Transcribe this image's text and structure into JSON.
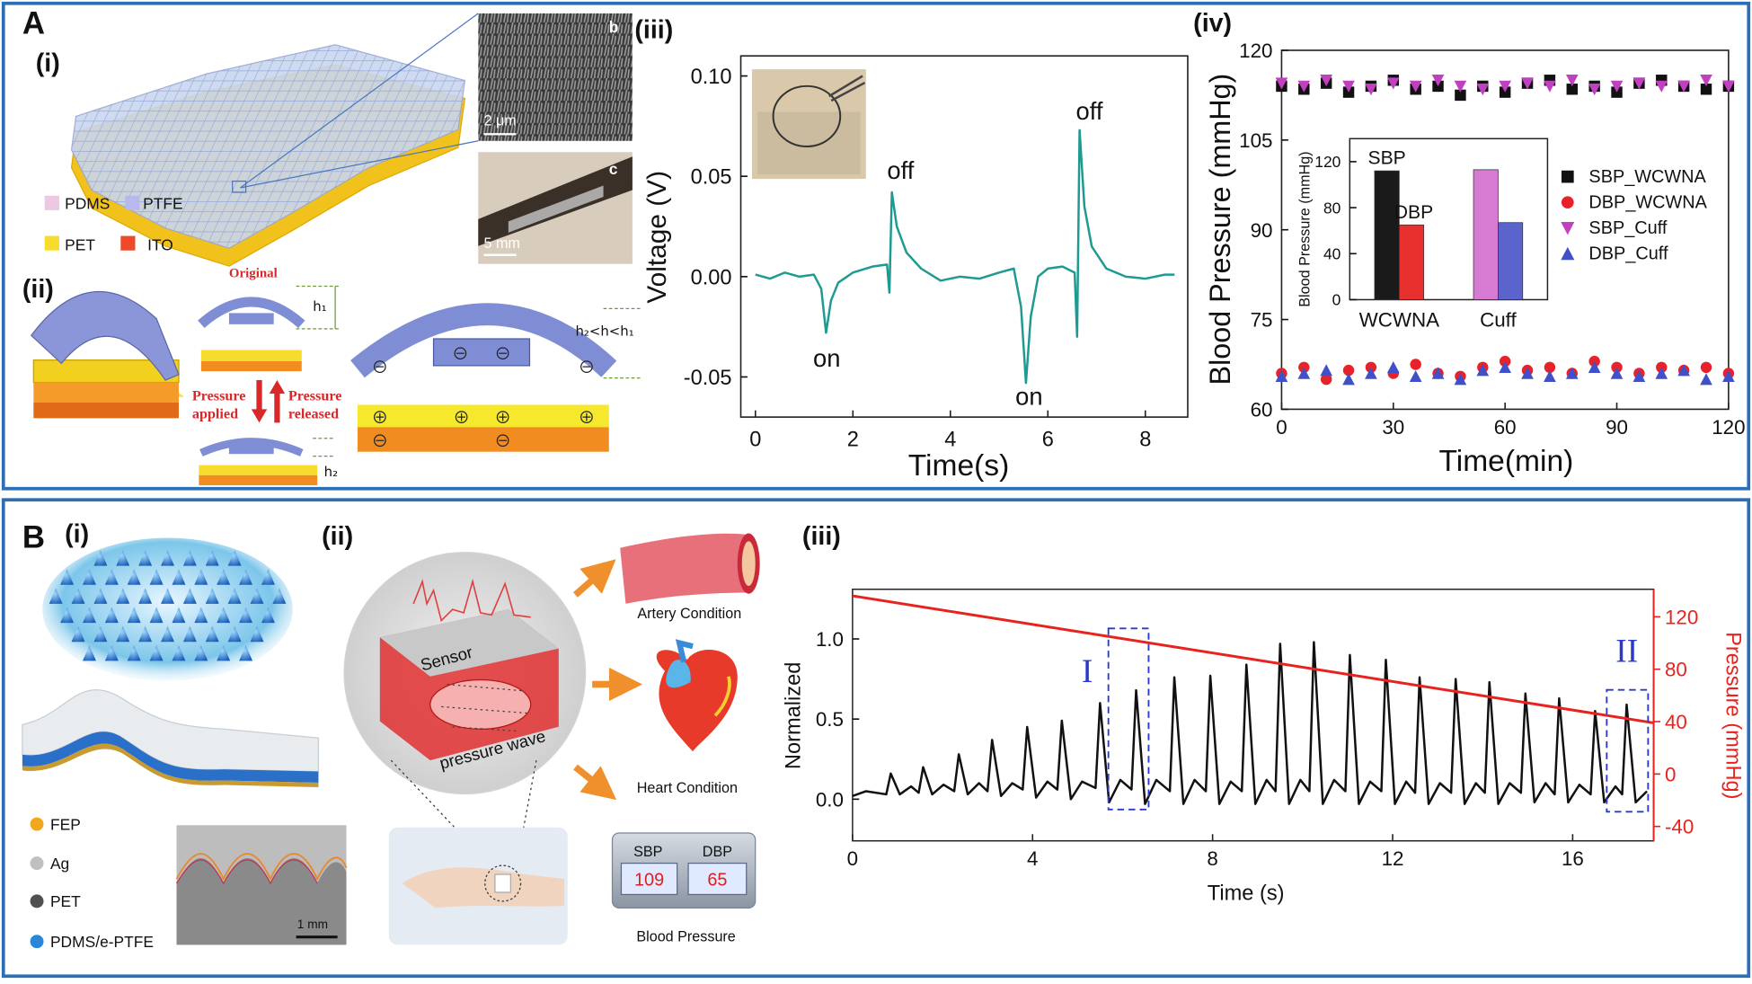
{
  "panels": {
    "A": {
      "label": "A",
      "sub": [
        "(i)",
        "(ii)",
        "(iii)",
        "(iv)"
      ],
      "materials": [
        "PDMS",
        "PTFE",
        "PET",
        "ITO"
      ],
      "sem": {
        "b": "b",
        "scale_b": "2 μm",
        "c": "c",
        "scale_c": "5 mm"
      },
      "schematic": {
        "original": "Original",
        "h1": "h₁",
        "h2": "h₂",
        "relation": "h₂<h<h₁",
        "applied": [
          "Pressure",
          "applied"
        ],
        "released": [
          "Pressure",
          "released"
        ]
      }
    },
    "B": {
      "label": "B",
      "sub": [
        "(i)",
        "(ii)",
        "(iii)"
      ],
      "materials": [
        "FEP",
        "Ag",
        "PET",
        "PDMS/e-PTFE"
      ],
      "scale": "1 mm",
      "sensor": "Sensor",
      "wave": "pressure wave",
      "outputs": [
        "Artery Condition",
        "Heart Condition",
        "Blood Pressure"
      ],
      "display": {
        "headers": [
          "SBP",
          "DBP"
        ],
        "values": [
          109,
          65
        ]
      }
    }
  },
  "chart_data": [
    {
      "type": "line",
      "xlabel": "Time(s)",
      "ylabel": "Voltage (V)",
      "color": "#1e9a90",
      "x": [
        0,
        0.3,
        0.6,
        0.9,
        1.2,
        1.35,
        1.45,
        1.55,
        1.7,
        2.0,
        2.4,
        2.7,
        2.75,
        2.8,
        2.9,
        3.1,
        3.4,
        3.8,
        4.2,
        4.6,
        5.0,
        5.3,
        5.45,
        5.55,
        5.65,
        5.8,
        6.0,
        6.3,
        6.55,
        6.6,
        6.65,
        6.75,
        6.9,
        7.2,
        7.6,
        8.0,
        8.4,
        8.6
      ],
      "values": [
        0.001,
        -0.001,
        0.002,
        0.0,
        0.001,
        -0.006,
        -0.028,
        -0.012,
        -0.003,
        0.002,
        0.005,
        0.006,
        -0.008,
        0.042,
        0.025,
        0.012,
        0.004,
        -0.002,
        0.0,
        -0.001,
        0.002,
        0.004,
        -0.015,
        -0.053,
        -0.02,
        0.0,
        0.004,
        0.005,
        0.002,
        -0.03,
        0.073,
        0.035,
        0.015,
        0.004,
        0.0,
        -0.001,
        0.001,
        0.001
      ],
      "annotations": [
        "on",
        "off",
        "on",
        "off"
      ],
      "xlim": [
        -0.3,
        8.87
      ],
      "ylim": [
        -0.07,
        0.11
      ],
      "xticks": [
        0,
        2,
        4,
        6,
        8
      ],
      "yticks": [
        -0.05,
        {
          "value": 0,
          "label": "0.00"
        },
        0.05,
        {
          "value": 0.1,
          "label": "0.10"
        }
      ]
    },
    {
      "type": "scatter",
      "xlabel": "Time(min)",
      "ylabel": "Blood Pressure (mmHg)",
      "x": [
        0,
        6,
        12,
        18,
        24,
        30,
        36,
        42,
        48,
        54,
        60,
        66,
        72,
        78,
        84,
        90,
        96,
        102,
        108,
        114,
        120
      ],
      "series": [
        {
          "name": "SBP_WCWNA",
          "color": "#111111",
          "marker": "square",
          "values": [
            114,
            113.5,
            114.5,
            113,
            114,
            115,
            113.5,
            114,
            112.5,
            114,
            113,
            114.5,
            115,
            113.5,
            114,
            113,
            114.5,
            115,
            114,
            113.5,
            114
          ]
        },
        {
          "name": "DBP_WCWNA",
          "color": "#e8222a",
          "marker": "circle",
          "values": [
            66,
            67,
            65,
            66.5,
            67,
            66,
            67.5,
            66,
            65.5,
            67,
            68,
            66.5,
            67,
            66,
            68,
            67,
            66,
            67,
            66.5,
            67,
            66
          ]
        },
        {
          "name": "SBP_Cuff",
          "color": "#c040c0",
          "marker": "triangle-down",
          "values": [
            114.5,
            114,
            115,
            114,
            113.5,
            114.5,
            114,
            115,
            114,
            113.5,
            114,
            114.5,
            114,
            115,
            113.5,
            114,
            114.5,
            114,
            114,
            115,
            114
          ]
        },
        {
          "name": "DBP_Cuff",
          "color": "#4050c8",
          "marker": "triangle-up",
          "values": [
            65.5,
            66,
            66.5,
            65,
            66,
            67,
            65.5,
            66,
            65,
            66.5,
            67,
            66,
            65.5,
            66,
            67,
            66,
            65.5,
            66,
            66.5,
            65,
            65.5
          ]
        }
      ],
      "xlim": [
        0,
        120
      ],
      "ylim": [
        60,
        120
      ],
      "xticks": [
        0,
        30,
        60,
        90,
        120
      ],
      "yticks": [
        60,
        75,
        90,
        105,
        120
      ]
    },
    {
      "type": "bar",
      "ylabel": "Blood Pressure (mmHg)",
      "categories": [
        "WCWNA",
        "Cuff"
      ],
      "series": [
        {
          "name": "SBP",
          "colors": [
            "#1a1a1a",
            "#d77ad2"
          ],
          "values": [
            112,
            113
          ]
        },
        {
          "name": "DBP",
          "colors": [
            "#e8302f",
            "#5a64cc"
          ],
          "values": [
            65,
            67
          ]
        }
      ],
      "ylim": [
        0,
        140
      ],
      "yticks": [
        0,
        40,
        80,
        120
      ]
    },
    {
      "type": "line",
      "xlabel": "Time (s)",
      "ylabel": "Normalized",
      "y2label": "Pressure (mmHg)",
      "series": [
        {
          "color": "#111111",
          "x": [
            0,
            0.3,
            0.75,
            0.85,
            1.05,
            1.3,
            1.47,
            1.57,
            1.77,
            2.02,
            2.26,
            2.36,
            2.56,
            2.81,
            3.0,
            3.1,
            3.3,
            3.55,
            3.78,
            3.88,
            4.08,
            4.33,
            4.55,
            4.65,
            4.85,
            5.1,
            5.4,
            5.5,
            5.7,
            5.95,
            6.2,
            6.3,
            6.5,
            6.75,
            7.05,
            7.15,
            7.35,
            7.6,
            7.85,
            7.95,
            8.15,
            8.4,
            8.65,
            8.75,
            8.95,
            9.2,
            9.4,
            9.5,
            9.7,
            9.95,
            10.15,
            10.25,
            10.45,
            10.7,
            10.95,
            11.05,
            11.25,
            11.5,
            11.75,
            11.85,
            12.05,
            12.3,
            12.5,
            12.6,
            12.8,
            13.05,
            13.3,
            13.4,
            13.6,
            13.85,
            14.05,
            14.15,
            14.35,
            14.6,
            14.85,
            14.95,
            15.15,
            15.4,
            15.6,
            15.7,
            15.9,
            16.15,
            16.4,
            16.5,
            16.7,
            16.95,
            17.1,
            17.2,
            17.4,
            17.65
          ],
          "values": [
            0.02,
            0.05,
            0.03,
            0.16,
            0.03,
            0.08,
            0.04,
            0.2,
            0.03,
            0.09,
            0.05,
            0.28,
            0.03,
            0.1,
            0.05,
            0.37,
            0.02,
            0.1,
            0.06,
            0.45,
            0.01,
            0.11,
            0.06,
            0.49,
            0.0,
            0.11,
            0.07,
            0.6,
            -0.02,
            0.12,
            0.06,
            0.68,
            -0.03,
            0.12,
            0.05,
            0.76,
            -0.03,
            0.12,
            0.05,
            0.77,
            -0.03,
            0.11,
            0.05,
            0.84,
            -0.03,
            0.12,
            0.05,
            0.97,
            -0.03,
            0.12,
            0.05,
            0.98,
            -0.03,
            0.12,
            0.05,
            0.9,
            -0.03,
            0.11,
            0.05,
            0.87,
            -0.03,
            0.11,
            0.04,
            0.76,
            -0.03,
            0.1,
            0.04,
            0.75,
            -0.03,
            0.1,
            0.04,
            0.73,
            -0.03,
            0.1,
            0.04,
            0.66,
            -0.02,
            0.1,
            0.03,
            0.63,
            -0.02,
            0.09,
            0.03,
            0.55,
            -0.02,
            0.08,
            0.03,
            0.59,
            -0.02,
            0.05
          ]
        },
        {
          "color": "#e8231f",
          "axis": "y2",
          "x": [
            0,
            17.8
          ],
          "values": [
            136,
            39
          ]
        }
      ],
      "annotations": [
        "I",
        "II"
      ],
      "xlim": [
        0,
        17.8
      ],
      "ylim": [
        -0.26,
        1.31
      ],
      "y2lim": [
        -51,
        141
      ],
      "xticks": [
        0,
        4,
        8,
        12,
        16
      ],
      "yticks": [
        {
          "value": 0,
          "label": "0.0"
        },
        0.5,
        {
          "value": 1,
          "label": "1.0"
        }
      ],
      "y2ticks": [
        -40,
        0,
        40,
        80,
        120
      ]
    }
  ]
}
